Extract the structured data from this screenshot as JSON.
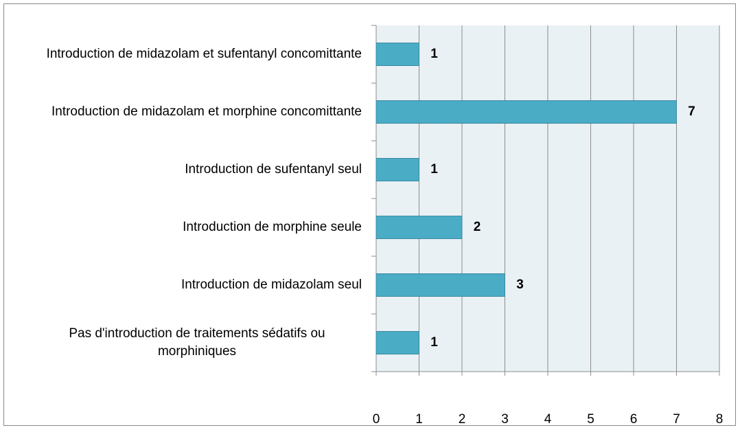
{
  "chart_data": {
    "type": "barh",
    "categories": [
      "Introduction de midazolam et sufentanyl concomittante",
      "Introduction de midazolam et morphine concomittante",
      "Introduction de sufentanyl seul",
      "Introduction de morphine seule",
      "Introduction de midazolam seul",
      "Pas d'introduction de traitements sédatifs ou morphiniques"
    ],
    "values": [
      1,
      7,
      1,
      2,
      3,
      1
    ],
    "color": "#4bacc6",
    "xlim": [
      0,
      8
    ],
    "xticks": [
      0,
      1,
      2,
      3,
      4,
      5,
      6,
      7,
      8
    ],
    "grid": true
  }
}
